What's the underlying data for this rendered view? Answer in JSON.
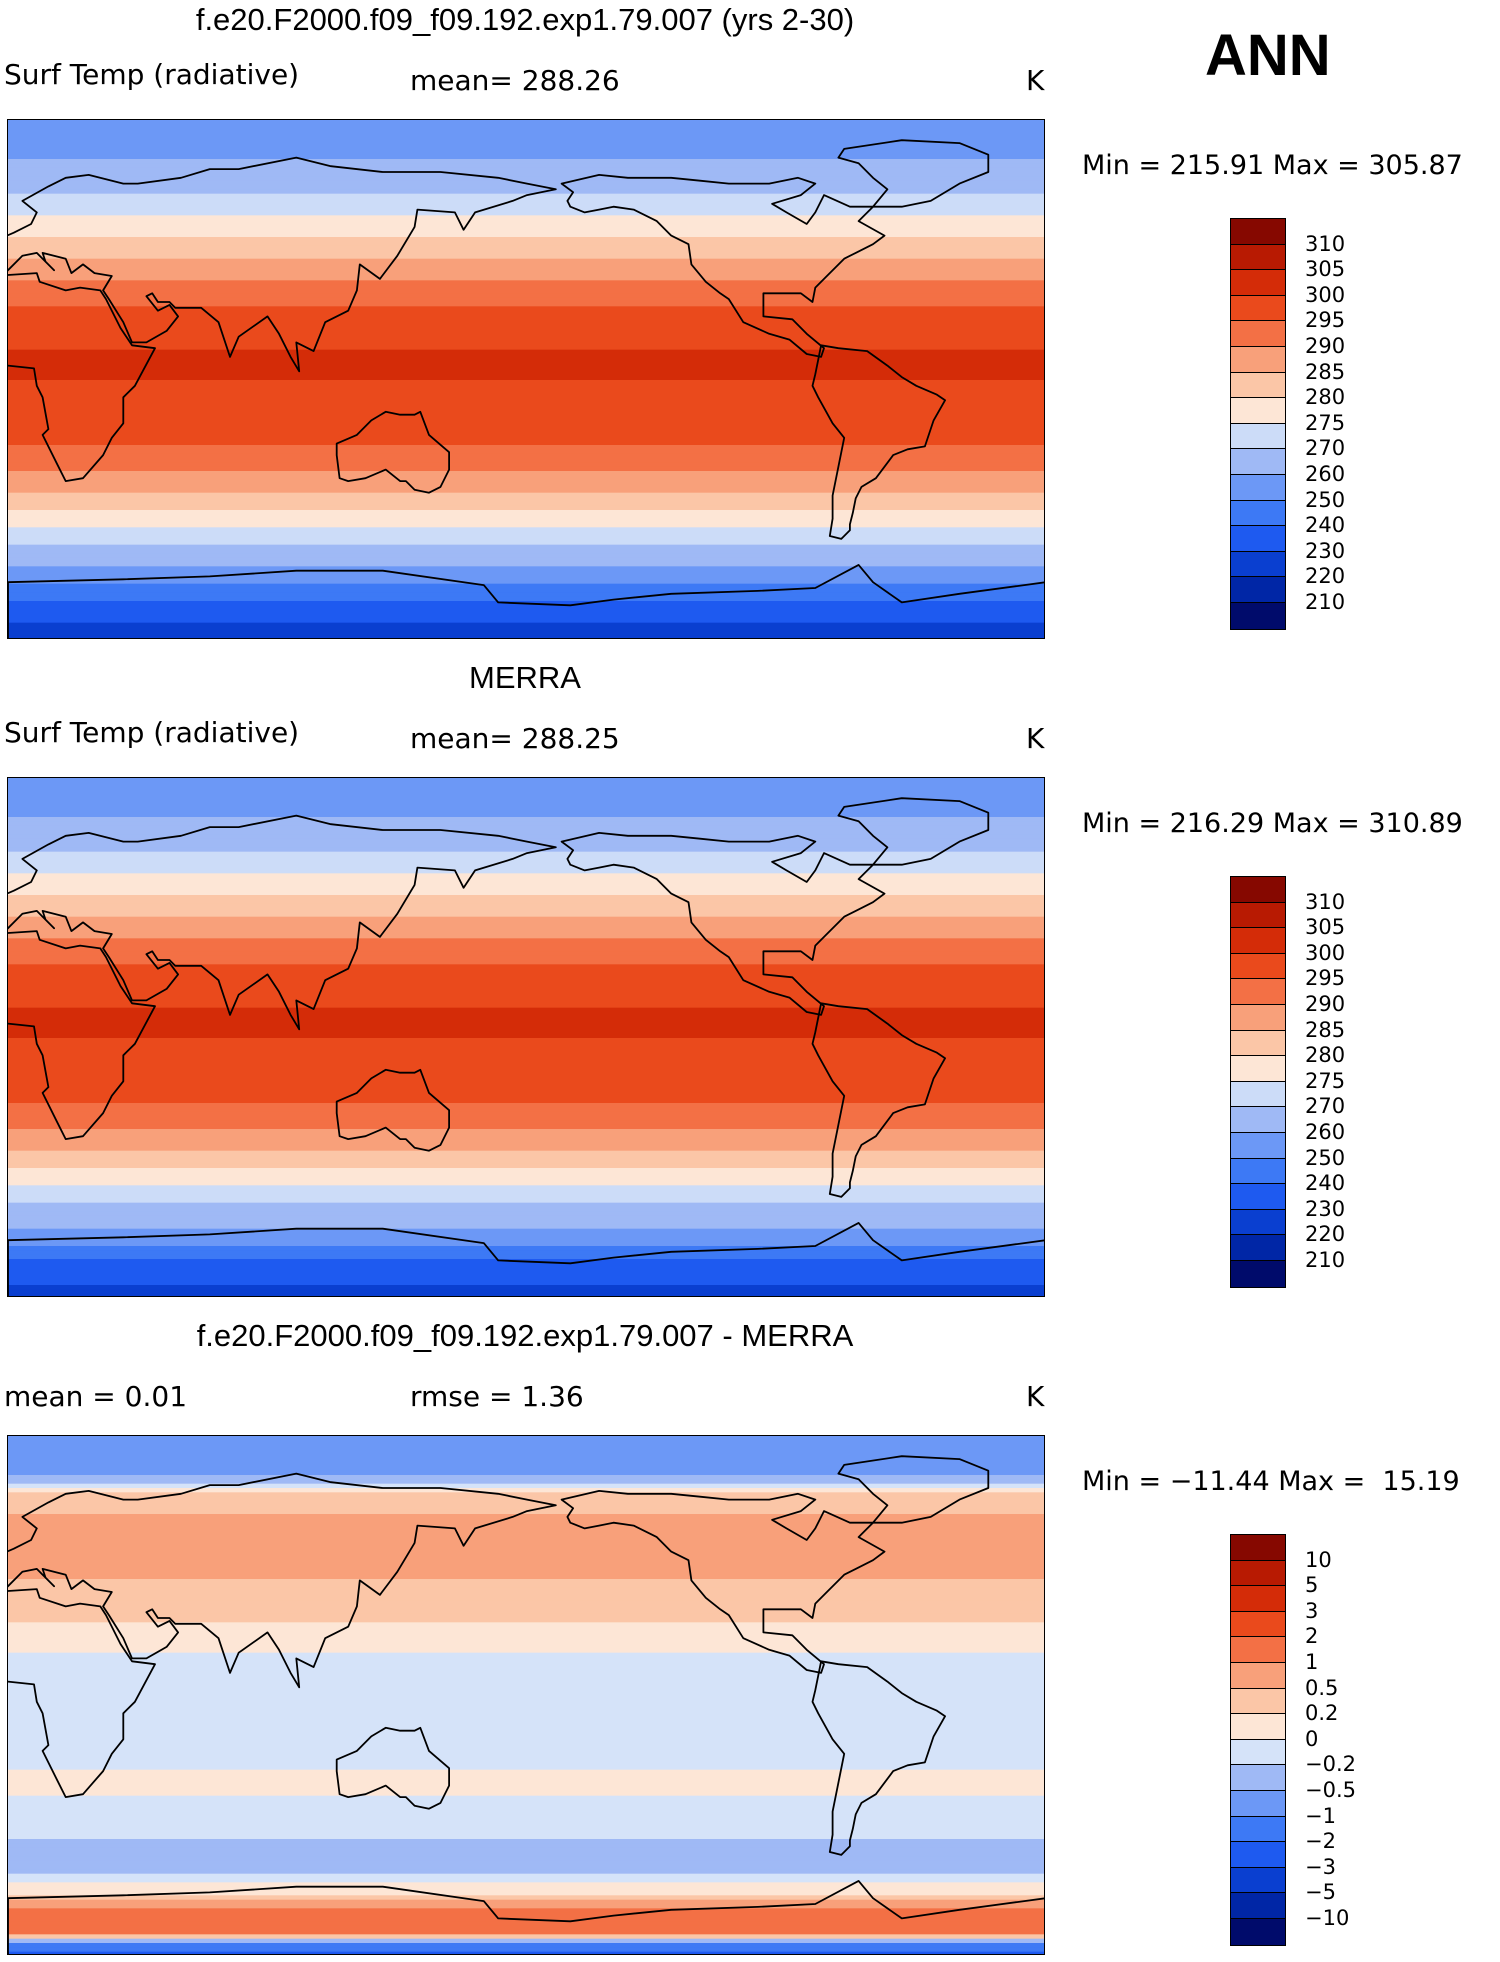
{
  "season": "ANN",
  "panels": [
    {
      "id": "model",
      "title": "f.e20.F2000.f09_f09.192.exp1.79.007 (yrs 2-30)",
      "left_text": "Surf Temp (radiative)",
      "center_text": "mean= 288.26",
      "units": "K",
      "minmax": "Min = 215.91 Max = 305.87"
    },
    {
      "id": "obs",
      "title": "MERRA",
      "left_text": "Surf Temp (radiative)",
      "center_text": "mean= 288.25",
      "units": "K",
      "minmax": "Min = 216.29 Max = 310.89"
    },
    {
      "id": "diff",
      "title": "f.e20.F2000.f09_f09.192.exp1.79.007 - MERRA",
      "left_text": "mean =    0.01",
      "center_text": "rmse =    1.36",
      "units": "K",
      "minmax": "Min = −11.44 Max =  15.19"
    }
  ],
  "colors": {
    "abs": [
      "#000b6b",
      "#0026a6",
      "#0a3fd0",
      "#1e5af0",
      "#3d79f5",
      "#6c98f6",
      "#9fb9f5",
      "#ccdcf8",
      "#fde6d6",
      "#fbc6a7",
      "#f8a07a",
      "#f37045",
      "#ea4a1c",
      "#d42c08",
      "#b81a02",
      "#860800"
    ],
    "diff": [
      "#000b6b",
      "#0026a6",
      "#0a3fd0",
      "#1e5af0",
      "#3d79f5",
      "#6c98f6",
      "#9fb9f5",
      "#d5e3f9",
      "#fde6d6",
      "#fbc6a7",
      "#f8a07a",
      "#f37045",
      "#ea4a1c",
      "#d42c08",
      "#b81a02",
      "#860800"
    ]
  },
  "chart_data": [
    {
      "type": "heatmap",
      "title": "f.e20.F2000.f09_f09.192.exp1.79.007 (yrs 2-30)",
      "variable": "Surf Temp (radiative)",
      "units": "K",
      "mean": 288.26,
      "min": 215.91,
      "max": 305.87,
      "lon_range": [
        0,
        360
      ],
      "lat_range": [
        -90,
        90
      ],
      "contour_levels": [
        210,
        220,
        230,
        240,
        250,
        260,
        270,
        275,
        280,
        285,
        290,
        295,
        300,
        305,
        310
      ],
      "zonal_profile": {
        "lat": [
          -90,
          -80,
          -70,
          -60,
          -50,
          -40,
          -30,
          -20,
          -10,
          0,
          10,
          20,
          30,
          40,
          50,
          60,
          70,
          80,
          90
        ],
        "value": [
          224,
          234,
          252,
          268,
          276,
          284,
          291,
          296,
          299,
          300,
          300,
          298,
          293,
          286,
          280,
          273,
          265,
          258,
          255
        ]
      }
    },
    {
      "type": "heatmap",
      "title": "MERRA",
      "variable": "Surf Temp (radiative)",
      "units": "K",
      "mean": 288.25,
      "min": 216.29,
      "max": 310.89,
      "lon_range": [
        0,
        360
      ],
      "lat_range": [
        -90,
        90
      ],
      "contour_levels": [
        210,
        220,
        230,
        240,
        250,
        260,
        270,
        275,
        280,
        285,
        290,
        295,
        300,
        305,
        310
      ],
      "zonal_profile": {
        "lat": [
          -90,
          -80,
          -70,
          -60,
          -50,
          -40,
          -30,
          -20,
          -10,
          0,
          10,
          20,
          30,
          40,
          50,
          60,
          70,
          80,
          90
        ],
        "value": [
          225,
          235,
          253,
          268,
          276,
          284,
          291,
          296,
          299,
          300,
          300,
          298,
          293,
          286,
          280,
          273,
          265,
          258,
          255
        ]
      }
    },
    {
      "type": "heatmap",
      "title": "f.e20.F2000.f09_f09.192.exp1.79.007 - MERRA",
      "units": "K",
      "mean": 0.01,
      "rmse": 1.36,
      "min": -11.44,
      "max": 15.19,
      "lon_range": [
        0,
        360
      ],
      "lat_range": [
        -90,
        90
      ],
      "contour_levels": [
        -10,
        -5,
        -3,
        -2,
        -1,
        -0.5,
        -0.2,
        0,
        0.2,
        0.5,
        1,
        2,
        3,
        5,
        10
      ],
      "zonal_profile": {
        "lat": [
          -90,
          -80,
          -70,
          -60,
          -50,
          -40,
          -30,
          -20,
          -10,
          0,
          10,
          20,
          30,
          40,
          50,
          60,
          70,
          80,
          90
        ],
        "value": [
          -3,
          2,
          0.3,
          -0.3,
          -0.2,
          -0.1,
          0.1,
          -0.1,
          -0.1,
          -0.1,
          -0.1,
          0.1,
          0.3,
          0.5,
          1,
          0.6,
          0.2,
          -1,
          -0.5
        ]
      }
    }
  ],
  "legends": {
    "abs_labels": [
      "310",
      "305",
      "300",
      "295",
      "290",
      "285",
      "280",
      "275",
      "270",
      "260",
      "250",
      "240",
      "230",
      "220",
      "210"
    ],
    "diff_labels": [
      "10",
      "5",
      "3",
      "2",
      "1",
      "0.5",
      "0.2",
      "0",
      "−0.2",
      "−0.5",
      "−1",
      "−2",
      "−3",
      "−5",
      "−10"
    ]
  }
}
